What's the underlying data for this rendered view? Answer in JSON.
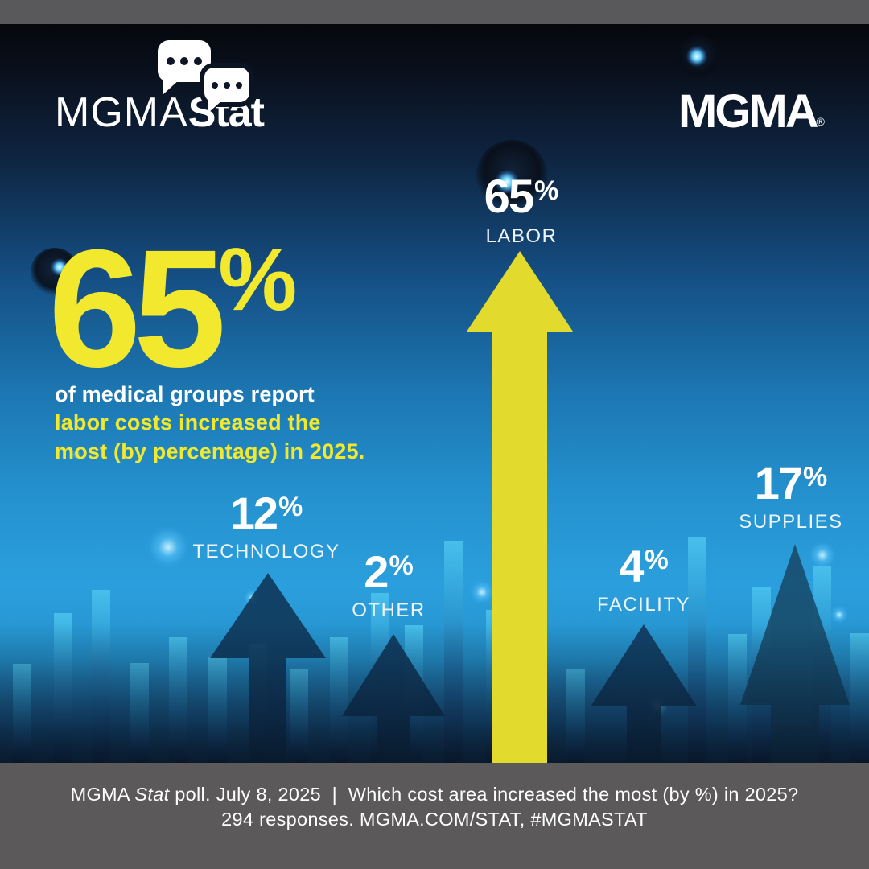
{
  "branding": {
    "stat_logo": {
      "mgma": "MGMA",
      "stat": "Stat"
    },
    "mgma_logo": {
      "text": "MGMA",
      "registered": "®"
    }
  },
  "hero": {
    "value": "65",
    "unit": "%",
    "copy_white": "of medical groups report ",
    "copy_yellow": "labor costs increased the most (by percentage) in 2025."
  },
  "labels": {
    "labor": {
      "value": "65",
      "unit": "%",
      "name": "LABOR"
    },
    "technology": {
      "value": "12",
      "unit": "%",
      "name": "TECHNOLOGY"
    },
    "other": {
      "value": "2",
      "unit": "%",
      "name": "OTHER"
    },
    "facility": {
      "value": "4",
      "unit": "%",
      "name": "FACILITY"
    },
    "supplies": {
      "value": "17",
      "unit": "%",
      "name": "SUPPLIES"
    }
  },
  "chart_data": {
    "type": "bar",
    "title": "Which cost area increased the most (by %) in 2025?",
    "categories": [
      "LABOR",
      "TECHNOLOGY",
      "OTHER",
      "FACILITY",
      "SUPPLIES"
    ],
    "values": [
      65,
      12,
      2,
      4,
      17
    ],
    "unit": "%",
    "highlight": {
      "category": "LABOR",
      "value": 65
    },
    "responses": 294,
    "poll_date": "July 8, 2025",
    "legend_position": "none",
    "grid": false
  },
  "footer": {
    "line1_brand": "MGMA ",
    "line1_stat": "Stat",
    "line1_rest": " poll. July 8, 2025  |  Which cost area increased the most (by %) in 2025?",
    "line2": "294 responses. MGMA.COM/STAT, #MGMASTAT"
  },
  "colors": {
    "accent_yellow": "#f2e92e",
    "arrow_yellow": "#e3da2e",
    "arrow_navy": "#0f3456",
    "bar_blue": "#38aee2",
    "frame_gray": "#59585a",
    "text_white": "#ffffff"
  }
}
